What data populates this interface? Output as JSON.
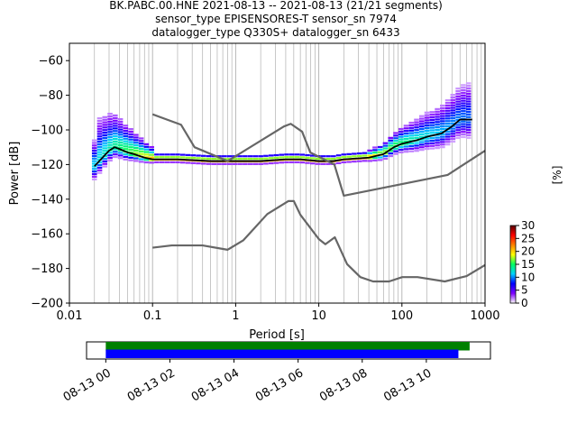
{
  "title_lines": [
    "BK.PABC.00.HNE   2021-08-13 -- 2021-08-13  (21/21 segments)",
    "sensor_type EPISENSORES-T sensor_sn 7974",
    "datalogger_type Q330S+ datalogger_sn 6433"
  ],
  "chart_data": [
    {
      "type": "heatmap",
      "subtype": "probabilistic-power-spectral-density",
      "xlabel": "Period [s]",
      "ylabel": "Power [dB]",
      "x_scale": "log",
      "xlim": [
        0.01,
        1000
      ],
      "ylim": [
        -200,
        -50
      ],
      "x_ticks": [
        0.01,
        0.1,
        1,
        10,
        100,
        1000
      ],
      "x_tick_labels": [
        "0.01",
        "0.1",
        "1",
        "10",
        "100",
        "1000"
      ],
      "y_ticks": [
        -200,
        -180,
        -160,
        -140,
        -120,
        -100,
        -80,
        -60
      ],
      "y_tick_labels": [
        "−200",
        "−180",
        "−160",
        "−140",
        "−120",
        "−100",
        "−80",
        "−60"
      ],
      "grid_x": "log-minor",
      "grid_y": false,
      "colorbar": {
        "label": "[%]",
        "min": 0,
        "max": 30,
        "ticks": [
          0,
          5,
          10,
          15,
          20,
          25,
          30
        ],
        "tick_labels": [
          "0",
          "5",
          "10",
          "15",
          "20",
          "25",
          "30"
        ],
        "colormap": [
          "#ffffff",
          "#7f00ff",
          "#0000ff",
          "#00d0ff",
          "#00ff60",
          "#ffff00",
          "#ff8000",
          "#ff0000",
          "#5a0000"
        ]
      },
      "series": [
        {
          "role": "mean",
          "color": "#000000",
          "points": [
            [
              0.02,
              -121
            ],
            [
              0.025,
              -116
            ],
            [
              0.03,
              -112
            ],
            [
              0.035,
              -110
            ],
            [
              0.04,
              -111
            ],
            [
              0.05,
              -113
            ],
            [
              0.06,
              -114
            ],
            [
              0.08,
              -116
            ],
            [
              0.1,
              -117
            ],
            [
              0.2,
              -117
            ],
            [
              0.5,
              -118
            ],
            [
              1,
              -118
            ],
            [
              2,
              -118
            ],
            [
              4,
              -117
            ],
            [
              6,
              -117
            ],
            [
              10,
              -118
            ],
            [
              15,
              -118
            ],
            [
              20,
              -117
            ],
            [
              40,
              -116
            ],
            [
              60,
              -114
            ],
            [
              80,
              -110
            ],
            [
              100,
              -108
            ],
            [
              150,
              -106
            ],
            [
              200,
              -104
            ],
            [
              300,
              -102
            ],
            [
              400,
              -98
            ],
            [
              500,
              -94
            ],
            [
              700,
              -94
            ]
          ]
        },
        {
          "role": "high-noise-model",
          "color": "#666666",
          "points": [
            [
              0.1,
              -91
            ],
            [
              0.22,
              -97
            ],
            [
              0.32,
              -110
            ],
            [
              0.8,
              -118
            ],
            [
              3.8,
              -98
            ],
            [
              4.6,
              -96.5
            ],
            [
              6.3,
              -101
            ],
            [
              7.9,
              -113
            ],
            [
              15.4,
              -120
            ],
            [
              20,
              -138
            ],
            [
              354.8,
              -126
            ],
            [
              1000,
              -112
            ]
          ]
        },
        {
          "role": "low-noise-model",
          "color": "#666666",
          "points": [
            [
              0.1,
              -168
            ],
            [
              0.17,
              -166.7
            ],
            [
              0.4,
              -166.7
            ],
            [
              0.8,
              -169.2
            ],
            [
              1.24,
              -163.7
            ],
            [
              2.4,
              -148.6
            ],
            [
              4.3,
              -141.1
            ],
            [
              5,
              -141.1
            ],
            [
              6,
              -149
            ],
            [
              10,
              -163
            ],
            [
              12,
              -166
            ],
            [
              15.6,
              -162
            ],
            [
              21.9,
              -177.5
            ],
            [
              31.6,
              -185
            ],
            [
              45,
              -187.5
            ],
            [
              70,
              -187.5
            ],
            [
              101,
              -185
            ],
            [
              154,
              -185
            ],
            [
              328,
              -187.5
            ],
            [
              600,
              -184.4
            ],
            [
              1000,
              -178
            ]
          ]
        }
      ]
    },
    {
      "type": "timeline",
      "title": "",
      "x_tick_labels": [
        "08-13 00",
        "08-13 02",
        "08-13 04",
        "08-13 06",
        "08-13 08",
        "08-13 10"
      ],
      "xlim_hours": [
        -0.6,
        12
      ],
      "bars": [
        {
          "color": "#008000",
          "start_hour": 0,
          "end_hour": 11.35
        },
        {
          "color": "#0000ff",
          "start_hour": 0,
          "end_hour": 11.0
        }
      ]
    }
  ]
}
